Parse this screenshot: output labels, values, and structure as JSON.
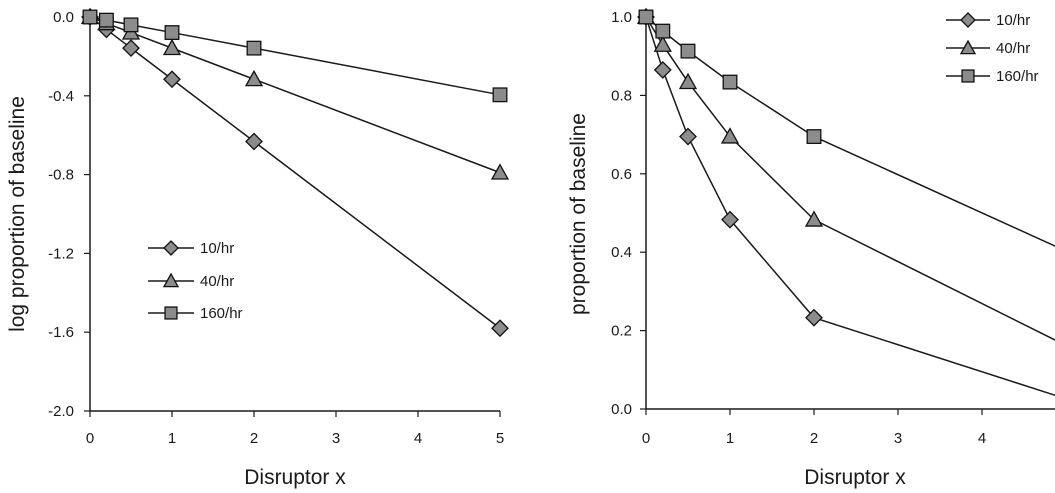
{
  "chart_data": [
    {
      "type": "line",
      "title": "",
      "xlabel": "Disruptor x",
      "ylabel": "log proportion of baseline",
      "xlim": [
        0,
        5
      ],
      "ylim": [
        -2.0,
        0.0
      ],
      "x_ticks": [
        "0",
        "1",
        "2",
        "3",
        "4",
        "5"
      ],
      "y_ticks": [
        "0.0",
        "-0.4",
        "-0.8",
        "-1.2",
        "-1.6",
        "-2.0"
      ],
      "legend_position": "center",
      "x": [
        0,
        0.2,
        0.5,
        1,
        2,
        5
      ],
      "series": [
        {
          "name": "10/hr",
          "marker": "diamond",
          "values": [
            0,
            -0.063,
            -0.158,
            -0.316,
            -0.632,
            -1.58
          ]
        },
        {
          "name": "40/hr",
          "marker": "triangle",
          "values": [
            0,
            -0.032,
            -0.079,
            -0.158,
            -0.316,
            -0.79
          ]
        },
        {
          "name": "160/hr",
          "marker": "square",
          "values": [
            0,
            -0.016,
            -0.04,
            -0.079,
            -0.158,
            -0.395
          ]
        }
      ]
    },
    {
      "type": "line",
      "title": "",
      "xlabel": "Disruptor x",
      "ylabel": "proportion of baseline",
      "xlim": [
        0,
        5
      ],
      "ylim": [
        0.0,
        1.0
      ],
      "x_ticks": [
        "0",
        "1",
        "2",
        "3",
        "4"
      ],
      "y_ticks": [
        "1.0",
        "0.8",
        "0.6",
        "0.4",
        "0.2",
        "0.0"
      ],
      "legend_position": "top-right",
      "x": [
        0,
        0.2,
        0.5,
        1,
        2,
        5
      ],
      "series": [
        {
          "name": "10/hr",
          "marker": "diamond",
          "values": [
            1.0,
            0.865,
            0.695,
            0.483,
            0.233,
            0.026
          ]
        },
        {
          "name": "40/hr",
          "marker": "triangle",
          "values": [
            1.0,
            0.929,
            0.834,
            0.695,
            0.483,
            0.162
          ]
        },
        {
          "name": "160/hr",
          "marker": "square",
          "values": [
            1.0,
            0.964,
            0.913,
            0.834,
            0.695,
            0.403
          ]
        }
      ]
    }
  ]
}
